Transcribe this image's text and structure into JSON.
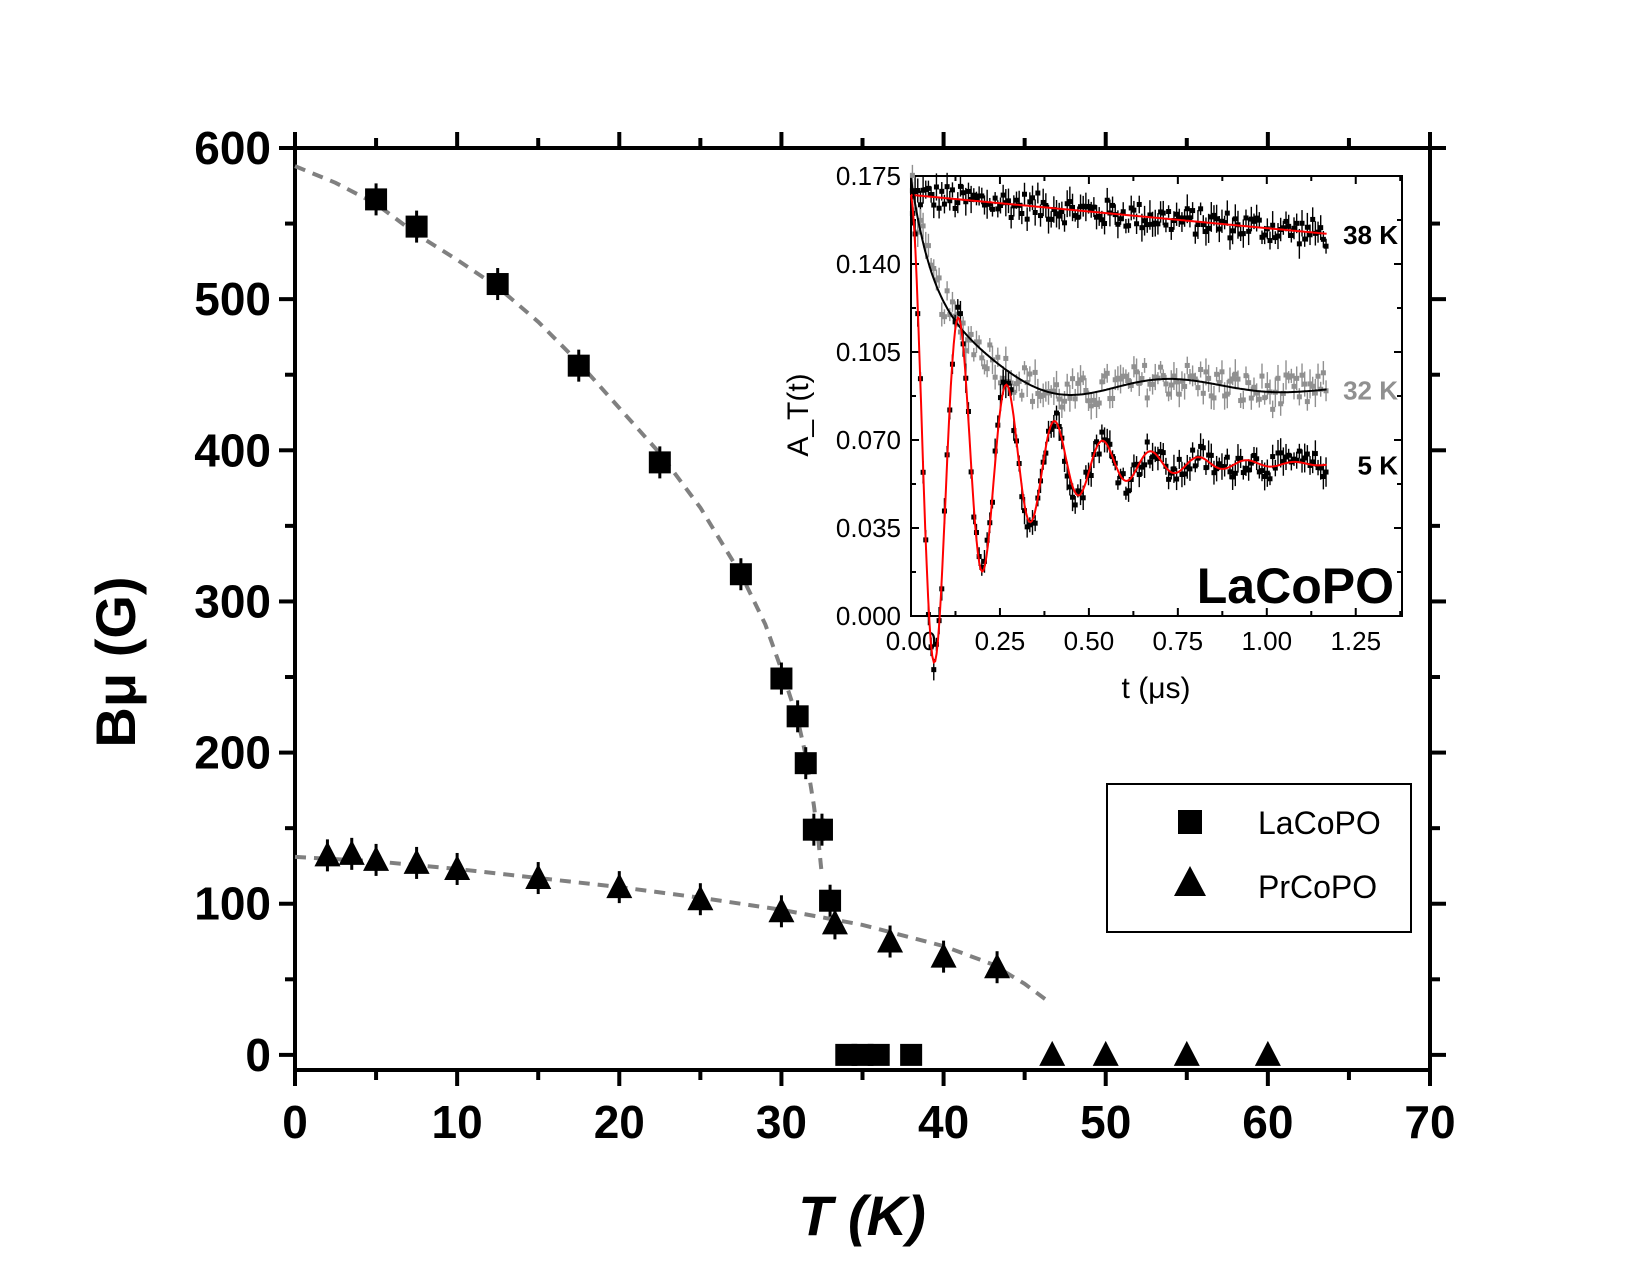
{
  "chart_data": [
    {
      "type": "scatter",
      "role": "main",
      "xlabel": "T (K)",
      "ylabel": "Bμ (G)",
      "xlim": [
        0,
        70
      ],
      "ylim": [
        -10,
        600
      ],
      "x_ticks": [
        0,
        10,
        20,
        30,
        40,
        50,
        60,
        70
      ],
      "y_ticks": [
        0,
        100,
        200,
        300,
        400,
        500,
        600
      ],
      "grid": false,
      "legend_position": "center-right",
      "series": [
        {
          "name": "LaCoPO",
          "marker": "square",
          "color": "#000000",
          "points": [
            [
              5,
              566
            ],
            [
              7.5,
              548
            ],
            [
              12.5,
              510
            ],
            [
              17.5,
              456
            ],
            [
              22.5,
              392
            ],
            [
              27.5,
              318
            ],
            [
              30,
              249
            ],
            [
              31,
              224
            ],
            [
              31.5,
              193
            ],
            [
              32,
              149
            ],
            [
              32.5,
              149
            ],
            [
              33,
              102
            ],
            [
              34,
              0
            ],
            [
              35,
              0
            ],
            [
              36,
              0
            ],
            [
              38,
              0
            ]
          ],
          "fit": {
            "style": "dashed",
            "color": "#808080",
            "points": [
              [
                0,
                588
              ],
              [
                2.5,
                577
              ],
              [
                5,
                563
              ],
              [
                7.5,
                543
              ],
              [
                10,
                526
              ],
              [
                12.5,
                508
              ],
              [
                15,
                485
              ],
              [
                17.5,
                458
              ],
              [
                20,
                428
              ],
              [
                22.5,
                398
              ],
              [
                25,
                362
              ],
              [
                27.5,
                318
              ],
              [
                29,
                285
              ],
              [
                30,
                255
              ],
              [
                31,
                222
              ],
              [
                31.5,
                198
              ],
              [
                32,
                165
              ],
              [
                32.3,
                140
              ],
              [
                32.5,
                118
              ]
            ]
          }
        },
        {
          "name": "PrCoPO",
          "marker": "triangle",
          "color": "#000000",
          "points": [
            [
              2,
              132
            ],
            [
              3.5,
              133
            ],
            [
              5,
              129
            ],
            [
              7.5,
              127
            ],
            [
              10,
              123
            ],
            [
              15,
              117
            ],
            [
              20,
              111
            ],
            [
              25,
              103
            ],
            [
              30,
              95
            ],
            [
              33.3,
              87
            ],
            [
              36.7,
              75
            ],
            [
              40,
              65
            ],
            [
              43.3,
              58
            ],
            [
              46.7,
              0
            ],
            [
              50,
              0
            ],
            [
              55,
              0
            ],
            [
              60,
              0
            ]
          ],
          "fit": {
            "style": "dashed",
            "color": "#808080",
            "points": [
              [
                0,
                131
              ],
              [
                5,
                128
              ],
              [
                10,
                123
              ],
              [
                15,
                117
              ],
              [
                20,
                111
              ],
              [
                25,
                104
              ],
              [
                30,
                96
              ],
              [
                35,
                86
              ],
              [
                40,
                72
              ],
              [
                43,
                60
              ],
              [
                45,
                47
              ],
              [
                46.5,
                35
              ]
            ]
          }
        }
      ]
    },
    {
      "type": "scatter",
      "role": "inset",
      "title": "LaCoPO",
      "xlabel": "t (μs)",
      "ylabel": "A_T(t)",
      "xlim": [
        0,
        1.38
      ],
      "ylim": [
        0,
        0.175
      ],
      "x_ticks": [
        "0.00",
        "0.25",
        "0.50",
        "0.75",
        "1.00",
        "1.25"
      ],
      "y_ticks": [
        "0.000",
        "0.035",
        "0.070",
        "0.105",
        "0.140",
        "0.175"
      ],
      "grid": false,
      "series": [
        {
          "name": "38 K",
          "color": "#000000",
          "fit_color": "#ff0000",
          "baseline": 0.1675,
          "decay": 0.0155,
          "noise": 0.0055
        },
        {
          "name": "32 K",
          "color": "#909090",
          "fit_color": "#000000",
          "baseline": 0.09,
          "noise": 0.007
        },
        {
          "name": "5 K",
          "color": "#000000",
          "fit_color": "#ff0000",
          "baseline": 0.0605,
          "noise": 0.005
        }
      ]
    }
  ],
  "legend": {
    "items": [
      {
        "label": "LaCoPO",
        "marker": "square"
      },
      {
        "label": "PrCoPO",
        "marker": "triangle"
      }
    ]
  }
}
